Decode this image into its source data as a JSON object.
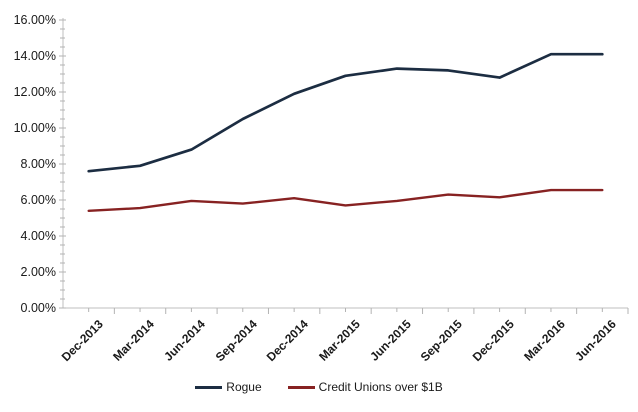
{
  "chart_data": {
    "type": "line",
    "title": "",
    "categories": [
      "Dec-2013",
      "Mar-2014",
      "Jun-2014",
      "Sep-2014",
      "Dec-2014",
      "Mar-2015",
      "Jun-2015",
      "Sep-2015",
      "Dec-2015",
      "Mar-2016",
      "Jun-2016"
    ],
    "series": [
      {
        "name": "Rogue",
        "color": "#1c2d42",
        "values": [
          7.6,
          7.9,
          8.8,
          10.5,
          11.9,
          12.9,
          13.3,
          13.2,
          12.8,
          14.1,
          14.1
        ]
      },
      {
        "name": "Credit Unions over $1B",
        "color": "#872222",
        "values": [
          5.4,
          5.55,
          5.95,
          5.8,
          6.1,
          5.7,
          5.95,
          6.3,
          6.15,
          6.55,
          6.55
        ]
      }
    ],
    "y_axis": {
      "min": 0,
      "max": 16,
      "major_step": 2,
      "minor_step": 0.5,
      "tick_labels": [
        "0.00%",
        "2.00%",
        "4.00%",
        "6.00%",
        "8.00%",
        "10.00%",
        "12.00%",
        "14.00%",
        "16.00%"
      ]
    },
    "x_axis": {
      "label_rotation": -45
    },
    "legend_position": "bottom",
    "gridlines": false
  },
  "colors": {
    "background": "#ffffff",
    "axis_line": "#bfbfbf",
    "tick_mark": "#b3b3b3",
    "label_text": "#1a1a1a"
  }
}
